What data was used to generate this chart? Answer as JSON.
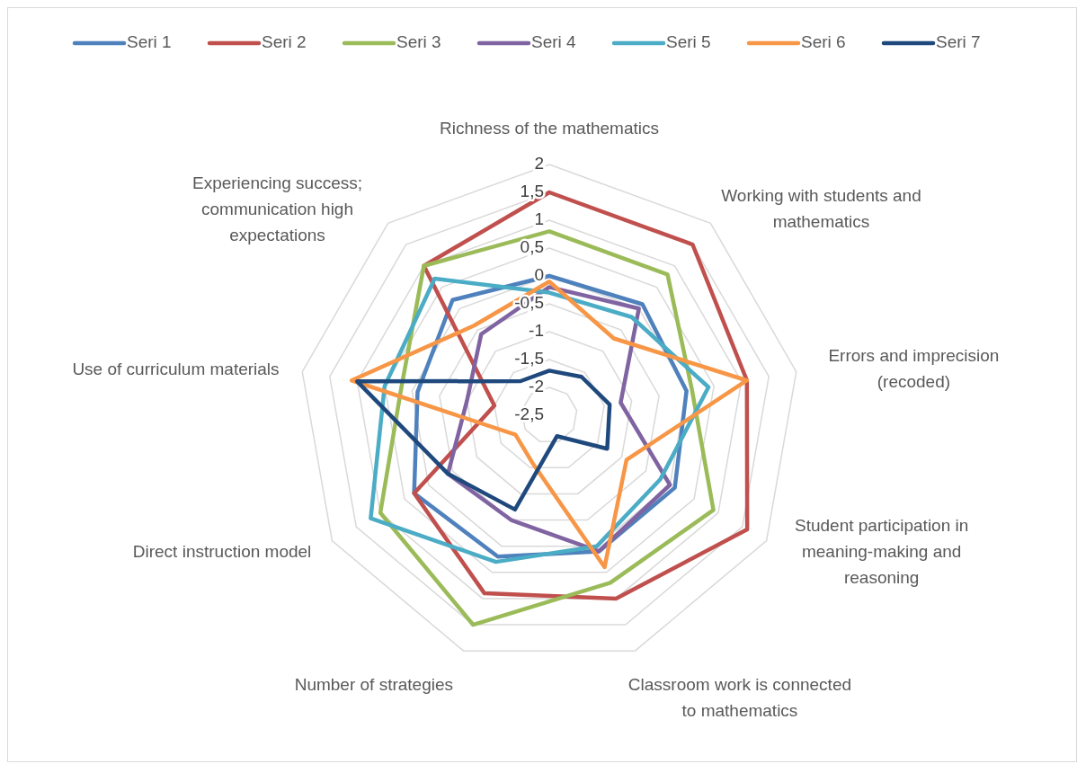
{
  "chart_data": {
    "type": "radar",
    "categories": [
      "Richness of the mathematics",
      "Working with students and mathematics",
      "Errors and imprecision (recoded)",
      "Student participation in meaning-making and reasoning",
      "Classroom work is connected to mathematics",
      "Number of strategies",
      "Direct instruction model",
      "Use of curriculum materials",
      "Experiencing success; communication high expectations"
    ],
    "series": [
      {
        "name": "Seri 1",
        "color": "#4f81bd",
        "values": [
          0,
          0.1,
          0,
          0.1,
          0.1,
          0.2,
          0.3,
          -0.1,
          0.2
        ]
      },
      {
        "name": "Seri 2",
        "color": "#c0504d",
        "values": [
          1.5,
          1.5,
          1.1,
          1.6,
          1.0,
          0.9,
          0.3,
          -1.5,
          1.0
        ]
      },
      {
        "name": "Seri 3",
        "color": "#9bbb59",
        "values": [
          0.8,
          0.8,
          0.1,
          0.9,
          0.7,
          1.5,
          1.0,
          0.2,
          1.0
        ]
      },
      {
        "name": "Seri 4",
        "color": "#8064a2",
        "values": [
          -0.2,
          0,
          -1.2,
          0,
          0.1,
          -0.5,
          -0.4,
          -1.0,
          -0.6
        ]
      },
      {
        "name": "Seri 5",
        "color": "#4bacc6",
        "values": [
          -0.3,
          -0.2,
          0.4,
          -0.2,
          0,
          0.3,
          1.2,
          0.5,
          0.7
        ]
      },
      {
        "name": "Seri 6",
        "color": "#f79646",
        "values": [
          -0.1,
          -0.7,
          1.1,
          -0.9,
          0.4,
          -1.6,
          -1.8,
          1.1,
          -0.4
        ]
      },
      {
        "name": "Seri 7",
        "color": "#1f497d",
        "values": [
          -1.7,
          -1.6,
          -1.4,
          -1.3,
          -2.1,
          -0.7,
          -0.4,
          1.0,
          -1.7
        ]
      }
    ],
    "ylim": [
      -2.5,
      2
    ],
    "yticks": [
      {
        "value": -2.5,
        "label": "-2,5"
      },
      -2,
      {
        "value": -1.5,
        "label": "-1,5"
      },
      -1,
      {
        "value": -0.5,
        "label": "-0,5"
      },
      0,
      {
        "value": 0.5,
        "label": "0,5"
      },
      1,
      {
        "value": 1.5,
        "label": "1,5"
      },
      2
    ],
    "grid": true,
    "legend": "top",
    "marker": "none",
    "line_style": "solid"
  }
}
